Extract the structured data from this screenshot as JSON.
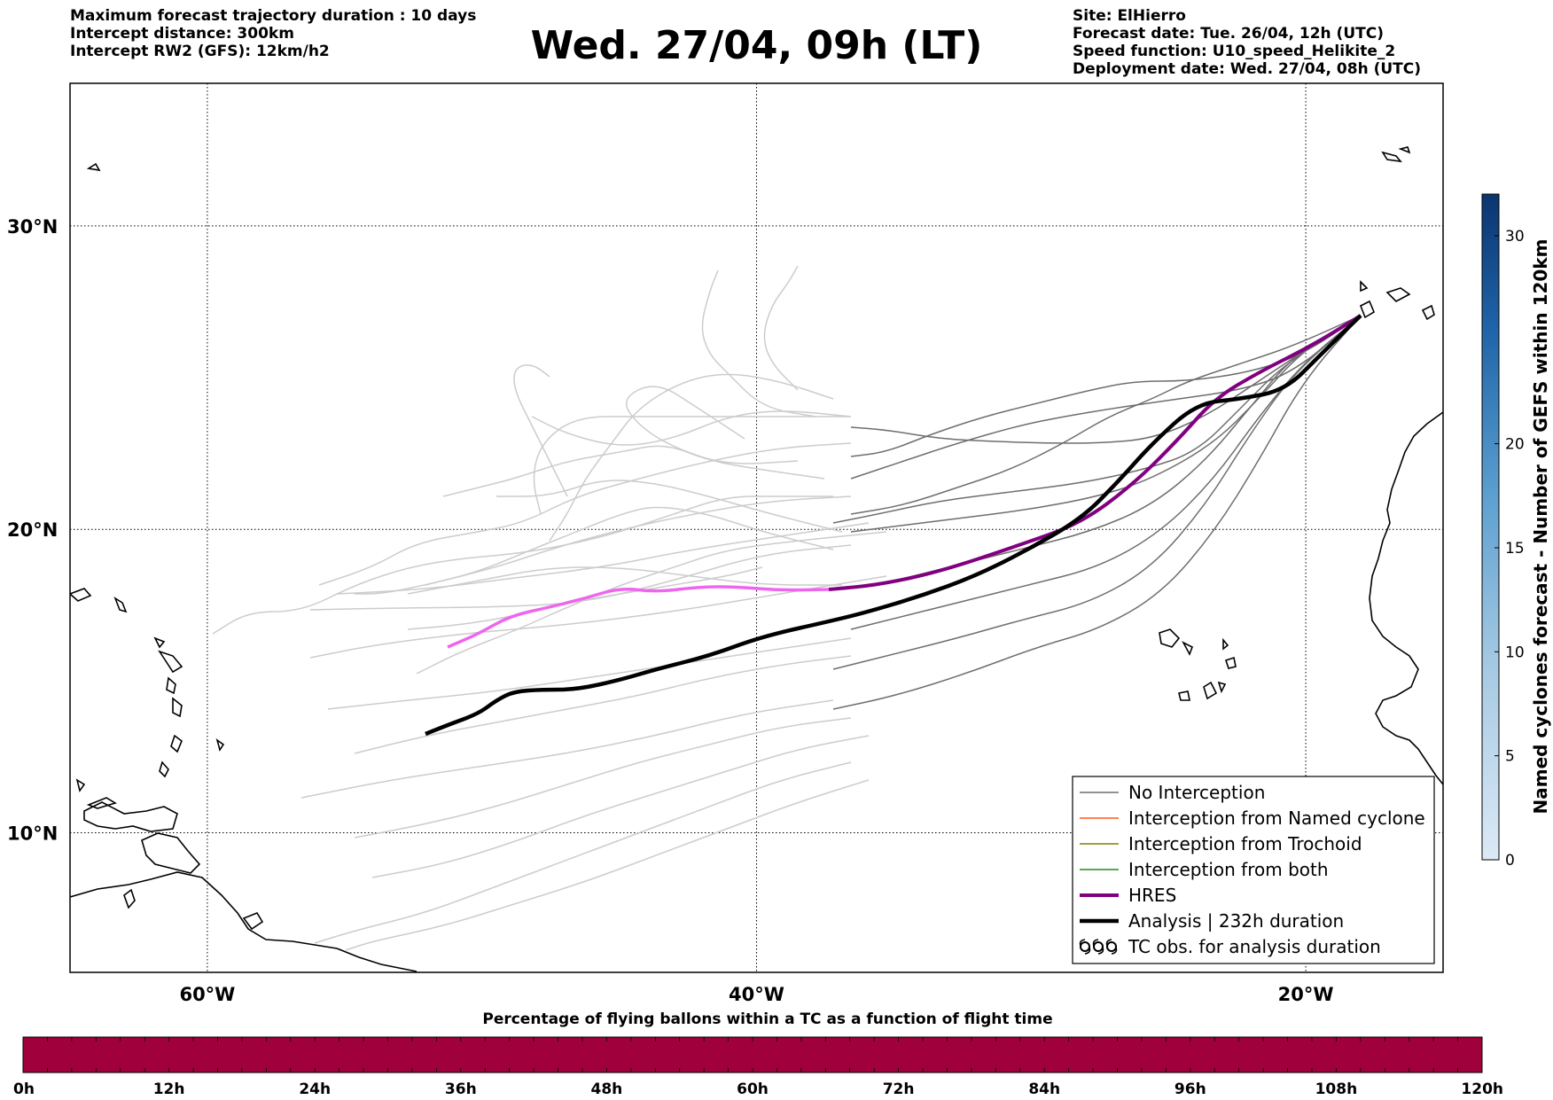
{
  "header": {
    "left_lines": [
      "Maximum forecast trajectory duration : 10 days",
      "Intercept distance: 300km",
      "Intercept RW2 (GFS):  12km/h2"
    ],
    "title": "Wed. 27/04, 09h (LT)",
    "right_lines": [
      "Site: ElHierro",
      "Forecast date: Tue. 26/04, 12h (UTC)",
      "Speed function: U10_speed_Helikite_2",
      "Deployment date: Wed. 27/04, 08h (UTC)"
    ]
  },
  "map": {
    "lat_labels": [
      {
        "text": "30°N",
        "lat": 30
      },
      {
        "text": "20°N",
        "lat": 20
      },
      {
        "text": "10°N",
        "lat": 10
      }
    ],
    "lon_labels": [
      {
        "text": "60°W",
        "lon": -60
      },
      {
        "text": "40°W",
        "lon": -40
      },
      {
        "text": "20°W",
        "lon": -20
      }
    ],
    "extent": {
      "lon_min": -65,
      "lon_max": -15,
      "lat_min": 5.4,
      "lat_max": 34.7
    },
    "colors": {
      "no_interception": "#6e6e6e",
      "faded_trajectory": "#cccccc",
      "named_cyclone": "#ff5a1a",
      "trochoid": "#808000",
      "both": "#228b22",
      "hres": "#800080",
      "hres_faded": "#ee66ee",
      "analysis": "#000000"
    }
  },
  "legend": {
    "items": [
      {
        "label": "No Interception",
        "style": "no_interception"
      },
      {
        "label": "Interception from Named cyclone",
        "style": "named_cyclone"
      },
      {
        "label": "Interception from Trochoid",
        "style": "trochoid"
      },
      {
        "label": "Interception from both",
        "style": "both"
      },
      {
        "label": "HRES",
        "style": "hres"
      },
      {
        "label": "Analysis | 232h duration",
        "style": "analysis"
      },
      {
        "label": "TC obs. for analysis duration",
        "style": "tc_symbols"
      }
    ]
  },
  "colorbar_right": {
    "label": "Named cyclones forecast - Number of GEFS within 120km",
    "ticks": [
      "0",
      "5",
      "10",
      "15",
      "20",
      "30"
    ],
    "tick_values": [
      0,
      5,
      10,
      15,
      20,
      30
    ],
    "range": [
      0,
      32
    ]
  },
  "colorbar_bottom": {
    "title": "Percentage of flying ballons within a TC as a function of flight time",
    "ticks": [
      "0h",
      "12h",
      "24h",
      "36h",
      "48h",
      "60h",
      "72h",
      "84h",
      "96h",
      "108h",
      "120h"
    ],
    "color": "#a0003c"
  }
}
